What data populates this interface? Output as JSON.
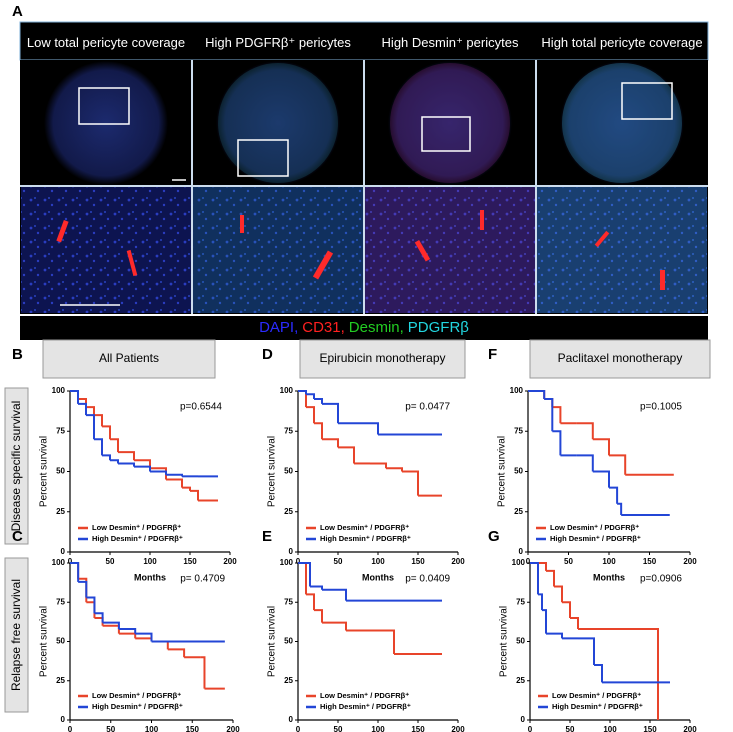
{
  "panel_a": {
    "label": "A",
    "columns": [
      "Low total pericyte coverage",
      "High PDGFRβ⁺ pericytes",
      "High Desmin⁺ pericytes",
      "High total pericyte coverage"
    ],
    "stain_legend": [
      {
        "text": "DAPI,",
        "color": "#2b2bff"
      },
      {
        "text": "CD31,",
        "color": "#ff2020"
      },
      {
        "text": "Desmin,",
        "color": "#22cc22"
      },
      {
        "text": "PDGFRβ",
        "color": "#22d6e0"
      }
    ]
  },
  "row_labels": [
    "Disease specific survival",
    "Relapse free survival"
  ],
  "chart_data": [
    {
      "type": "line",
      "panel": "B",
      "header": "All Patients",
      "annotation": "p=0.6544",
      "xlabel": "Months",
      "ylabel": "Percent survival",
      "xlim": [
        0,
        200
      ],
      "ylim": [
        0,
        100
      ],
      "xticks": [
        0,
        50,
        100,
        150,
        200
      ],
      "yticks": [
        0,
        25,
        50,
        75,
        100
      ],
      "series": [
        {
          "name": "Low Desmin⁺ / PDGFRβ⁺",
          "color": "#e8442a",
          "x": [
            0,
            10,
            20,
            30,
            40,
            50,
            60,
            80,
            100,
            120,
            140,
            150,
            160,
            185
          ],
          "values": [
            100,
            95,
            90,
            85,
            78,
            70,
            62,
            57,
            52,
            45,
            40,
            38,
            32,
            32
          ]
        },
        {
          "name": "High Desmin⁺ / PDGFRβ⁺",
          "color": "#2346d6",
          "x": [
            0,
            10,
            20,
            30,
            40,
            50,
            60,
            80,
            100,
            120,
            140,
            160,
            185
          ],
          "values": [
            100,
            92,
            85,
            70,
            60,
            57,
            55,
            53,
            50,
            48,
            47,
            47,
            47
          ]
        }
      ]
    },
    {
      "type": "line",
      "panel": "D",
      "header": "Epirubicin monotherapy",
      "annotation": "p= 0.0477",
      "xlabel": "Months",
      "ylabel": "Percent survival",
      "xlim": [
        0,
        200
      ],
      "ylim": [
        0,
        100
      ],
      "xticks": [
        0,
        50,
        100,
        150,
        200
      ],
      "yticks": [
        0,
        25,
        50,
        75,
        100
      ],
      "series": [
        {
          "name": "Low Desmin⁺ / PDGFRβ⁺",
          "color": "#e8442a",
          "x": [
            0,
            10,
            20,
            30,
            50,
            70,
            90,
            110,
            130,
            150,
            180
          ],
          "values": [
            100,
            90,
            80,
            70,
            65,
            55,
            55,
            52,
            50,
            35,
            35
          ]
        },
        {
          "name": "High Desmin⁺ / PDGFRβ⁺",
          "color": "#2346d6",
          "x": [
            0,
            10,
            20,
            30,
            50,
            100,
            180
          ],
          "values": [
            100,
            98,
            95,
            92,
            80,
            73,
            73
          ]
        }
      ]
    },
    {
      "type": "line",
      "panel": "F",
      "header": "Paclitaxel monotherapy",
      "annotation": "p=0.1005",
      "xlabel": "Months",
      "ylabel": "Percent survival",
      "xlim": [
        0,
        200
      ],
      "ylim": [
        0,
        100
      ],
      "xticks": [
        0,
        50,
        100,
        150,
        200
      ],
      "yticks": [
        0,
        25,
        50,
        75,
        100
      ],
      "series": [
        {
          "name": "Low Desmin⁺ / PDGFRβ⁺",
          "color": "#e8442a",
          "x": [
            0,
            20,
            30,
            40,
            60,
            80,
            100,
            120,
            180
          ],
          "values": [
            100,
            95,
            90,
            80,
            80,
            70,
            60,
            48,
            48
          ]
        },
        {
          "name": "High Desmin⁺ / PDGFRβ⁺",
          "color": "#2346d6",
          "x": [
            0,
            20,
            30,
            40,
            60,
            80,
            100,
            110,
            115,
            175
          ],
          "values": [
            100,
            95,
            75,
            60,
            60,
            50,
            40,
            30,
            23,
            23
          ]
        }
      ]
    },
    {
      "type": "line",
      "panel": "C",
      "annotation": "p= 0.4709",
      "xlabel": "Months",
      "ylabel": "Percent survival",
      "xlim": [
        0,
        200
      ],
      "ylim": [
        0,
        100
      ],
      "xticks": [
        0,
        50,
        100,
        150,
        200
      ],
      "yticks": [
        0,
        25,
        50,
        75,
        100
      ],
      "series": [
        {
          "name": "Low Desmin⁺ / PDGFRβ⁺",
          "color": "#e8442a",
          "x": [
            0,
            10,
            20,
            30,
            40,
            60,
            80,
            100,
            120,
            140,
            160,
            165,
            190
          ],
          "values": [
            100,
            90,
            75,
            65,
            60,
            55,
            52,
            50,
            45,
            40,
            40,
            20,
            20
          ]
        },
        {
          "name": "High Desmin⁺ / PDGFRβ⁺",
          "color": "#2346d6",
          "x": [
            0,
            10,
            20,
            30,
            40,
            60,
            80,
            100,
            190
          ],
          "values": [
            100,
            88,
            78,
            68,
            62,
            58,
            55,
            50,
            50
          ]
        }
      ]
    },
    {
      "type": "line",
      "panel": "E",
      "annotation": "p= 0.0409",
      "xlabel": "Months",
      "ylabel": "Percent survival",
      "xlim": [
        0,
        200
      ],
      "ylim": [
        0,
        100
      ],
      "xticks": [
        0,
        50,
        100,
        150,
        200
      ],
      "yticks": [
        0,
        25,
        50,
        75,
        100
      ],
      "series": [
        {
          "name": "Low Desmin⁺ / PDGFRβ⁺",
          "color": "#e8442a",
          "x": [
            0,
            10,
            20,
            30,
            60,
            110,
            120,
            180
          ],
          "values": [
            100,
            80,
            70,
            62,
            57,
            57,
            42,
            42
          ]
        },
        {
          "name": "High Desmin⁺ / PDGFRβ⁺",
          "color": "#2346d6",
          "x": [
            0,
            15,
            30,
            60,
            100,
            180
          ],
          "values": [
            100,
            85,
            83,
            76,
            76,
            76
          ]
        }
      ]
    },
    {
      "type": "line",
      "panel": "G",
      "annotation": "p=0.0906",
      "xlabel": "Months",
      "ylabel": "Percent survival",
      "xlim": [
        0,
        200
      ],
      "ylim": [
        0,
        100
      ],
      "xticks": [
        0,
        50,
        100,
        150,
        200
      ],
      "yticks": [
        0,
        25,
        50,
        75,
        100
      ],
      "series": [
        {
          "name": "Low Desmin⁺ / PDGFRβ⁺",
          "color": "#e8442a",
          "x": [
            0,
            20,
            30,
            40,
            50,
            60,
            155,
            160
          ],
          "values": [
            100,
            95,
            85,
            75,
            65,
            58,
            58,
            0
          ]
        },
        {
          "name": "High Desmin⁺ / PDGFRβ⁺",
          "color": "#2346d6",
          "x": [
            0,
            10,
            15,
            20,
            40,
            60,
            80,
            90,
            175
          ],
          "values": [
            100,
            80,
            70,
            55,
            52,
            52,
            35,
            24,
            24
          ]
        }
      ]
    }
  ]
}
